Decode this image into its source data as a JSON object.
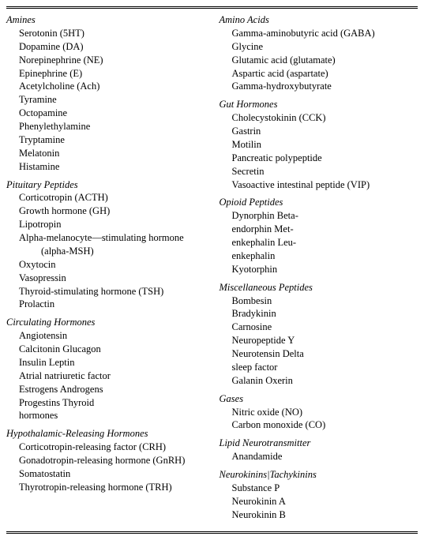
{
  "left": [
    {
      "title": "Amines",
      "items": [
        "Serotonin (5HT)",
        "Dopamine (DA)",
        "Norepinephrine (NE)",
        "Epinephrine (E)",
        "Acetylcholine (Ach)",
        "Tyramine",
        "Octopamine",
        "Phenylethylamine",
        "Tryptamine",
        "Melatonin",
        "Histamine"
      ]
    },
    {
      "title": "Pituitary Peptides",
      "items": [
        "Corticotropin (ACTH)",
        "Growth hormone (GH)",
        "Lipotropin",
        "Alpha-melanocyte—stimulating hormone",
        "Oxytocin",
        "Vasopressin",
        "Thyroid-stimulating hormone (TSH)",
        "Prolactin"
      ],
      "subAfterIndex": 3,
      "subText": "(alpha-MSH)"
    },
    {
      "title": "Circulating Hormones",
      "items": [
        "Angiotensin",
        "Calcitonin Glucagon",
        "Insulin Leptin",
        "Atrial natriuretic factor",
        "Estrogens Androgens",
        "Progestins Thyroid",
        "hormones"
      ]
    },
    {
      "title": "Hypothalamic-Releasing Hormones",
      "items": [
        "Corticotropin-releasing factor (CRH)",
        "Gonadotropin-releasing hormone (GnRH)",
        "Somatostatin",
        "Thyrotropin-releasing hormone (TRH)"
      ]
    }
  ],
  "right": [
    {
      "title": "Amino Acids",
      "items": [
        "Gamma-aminobutyric acid (GABA)",
        "Glycine",
        "Glutamic acid (glutamate)",
        "Aspartic acid (aspartate)",
        "Gamma-hydroxybutyrate"
      ]
    },
    {
      "title": "Gut Hormones",
      "items": [
        "Cholecystokinin (CCK)",
        "Gastrin",
        "Motilin",
        "Pancreatic polypeptide",
        "Secretin",
        "Vasoactive intestinal peptide (VIP)"
      ]
    },
    {
      "title": "Opioid Peptides",
      "items": [
        "Dynorphin Beta-",
        "endorphin Met-",
        "enkephalin Leu-",
        "enkephalin",
        "Kyotorphin"
      ]
    },
    {
      "title": "Miscellaneous Peptides",
      "items": [
        "Bombesin",
        "Bradykinin",
        "Carnosine",
        "Neuropeptide Y",
        "Neurotensin Delta",
        "sleep factor",
        "Galanin Oxerin"
      ]
    },
    {
      "title": "Gases",
      "items": [
        "Nitric oxide (NO)",
        "Carbon monoxide (CO)"
      ]
    },
    {
      "title": "Lipid Neurotransmitter",
      "items": [
        "Anandamide"
      ]
    },
    {
      "title": "Neurokinins|Tachykinins",
      "items": [
        "Substance P",
        "Neurokinin A",
        "Neurokinin B"
      ]
    }
  ]
}
